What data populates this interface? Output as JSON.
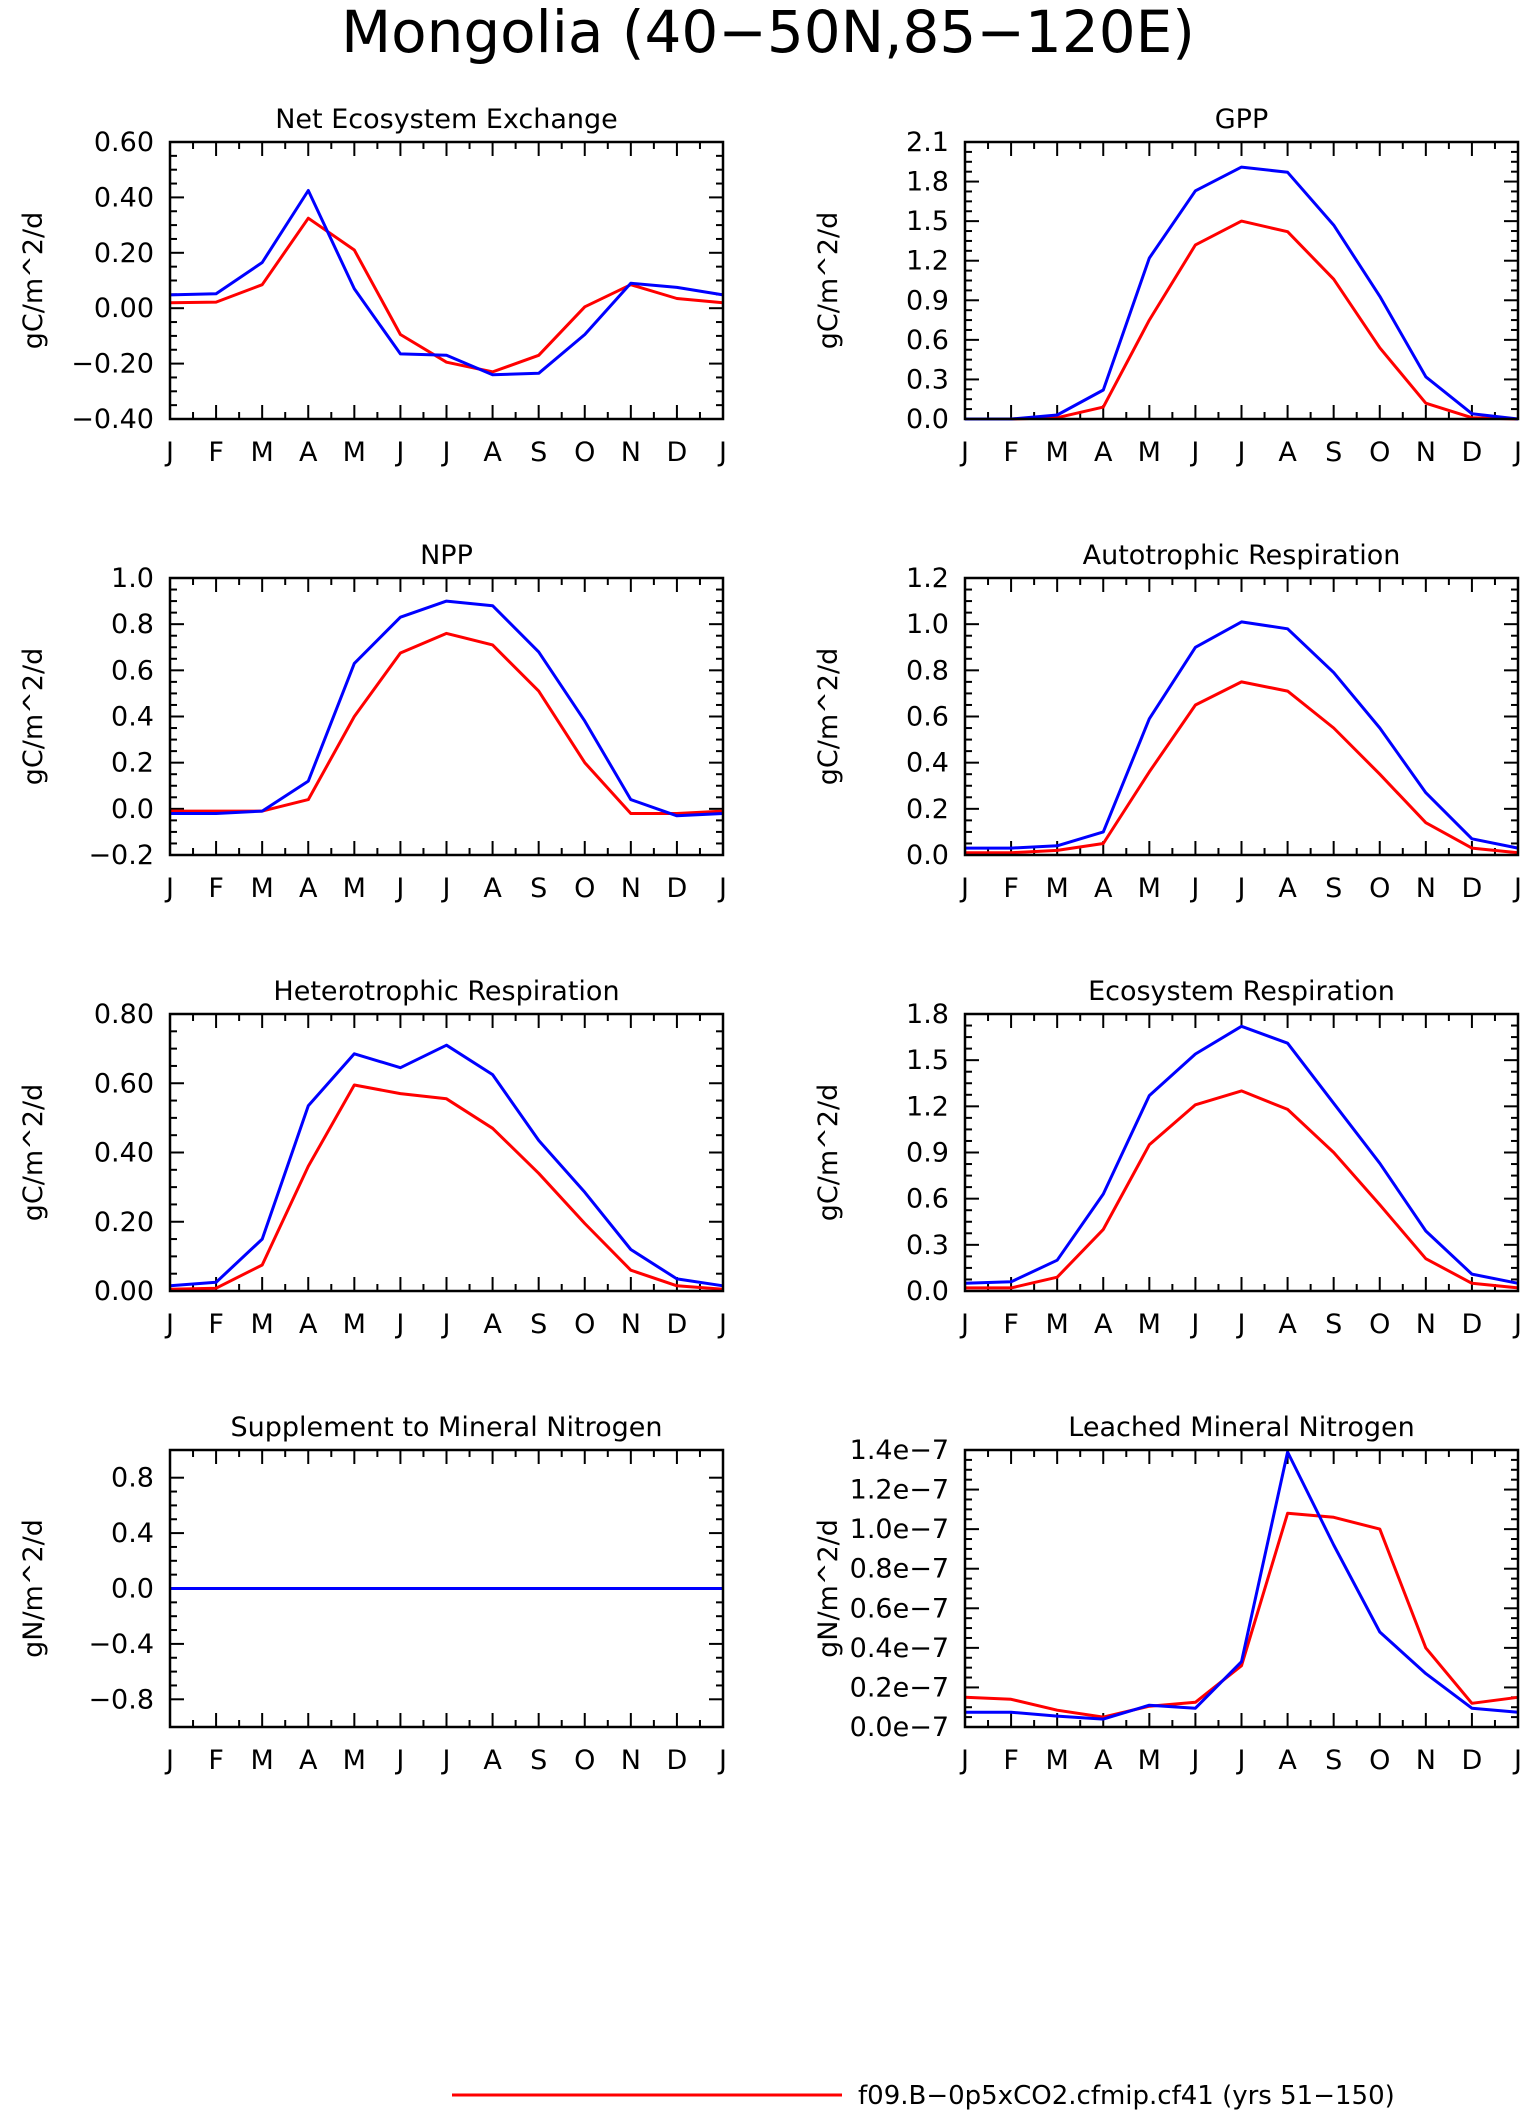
{
  "page_title": "Mongolia (40−50N,85−120E)",
  "legend": [
    {
      "label": "f09.B−0p5xCO2.cfmip.cf41 (yrs 51−150)",
      "color": "#ff0000"
    }
  ],
  "chart_data": [
    {
      "type": "line",
      "title": "Net Ecosystem Exchange",
      "ylabel": "gC/m^2/d",
      "categories": [
        "J",
        "F",
        "M",
        "A",
        "M",
        "J",
        "J",
        "A",
        "S",
        "O",
        "N",
        "D",
        "J"
      ],
      "ylim": [
        -0.4,
        0.6
      ],
      "yticks": [
        -0.4,
        -0.2,
        0.0,
        0.2,
        0.4,
        0.6
      ],
      "yticklabels": [
        "−0.40",
        "−0.20",
        "0.00",
        "0.20",
        "0.40",
        "0.60"
      ],
      "series": [
        {
          "color": "#ff0000",
          "values": [
            0.02,
            0.022,
            0.085,
            0.325,
            0.21,
            -0.095,
            -0.195,
            -0.23,
            -0.17,
            0.005,
            0.085,
            0.035,
            0.02
          ]
        },
        {
          "color": "#0000ff",
          "values": [
            0.048,
            0.052,
            0.165,
            0.425,
            0.07,
            -0.165,
            -0.17,
            -0.24,
            -0.235,
            -0.095,
            0.09,
            0.075,
            0.048
          ]
        }
      ]
    },
    {
      "type": "line",
      "title": "GPP",
      "ylabel": "gC/m^2/d",
      "categories": [
        "J",
        "F",
        "M",
        "A",
        "M",
        "J",
        "J",
        "A",
        "S",
        "O",
        "N",
        "D",
        "J"
      ],
      "ylim": [
        0,
        2.1
      ],
      "yticks": [
        0,
        0.3,
        0.6,
        0.9,
        1.2,
        1.5,
        1.8,
        2.1
      ],
      "yticklabels": [
        "0.0",
        "0.3",
        "0.6",
        "0.9",
        "1.2",
        "1.5",
        "1.8",
        "2.1"
      ],
      "series": [
        {
          "color": "#ff0000",
          "values": [
            0.0,
            0.0,
            0.01,
            0.09,
            0.75,
            1.32,
            1.5,
            1.42,
            1.06,
            0.54,
            0.12,
            0.01,
            0.0
          ]
        },
        {
          "color": "#0000ff",
          "values": [
            0.0,
            0.0,
            0.03,
            0.22,
            1.22,
            1.73,
            1.91,
            1.87,
            1.47,
            0.93,
            0.32,
            0.04,
            0.0
          ]
        }
      ]
    },
    {
      "type": "line",
      "title": "NPP",
      "ylabel": "gC/m^2/d",
      "categories": [
        "J",
        "F",
        "M",
        "A",
        "M",
        "J",
        "J",
        "A",
        "S",
        "O",
        "N",
        "D",
        "J"
      ],
      "ylim": [
        -0.2,
        1.0
      ],
      "yticks": [
        -0.2,
        0.0,
        0.2,
        0.4,
        0.6,
        0.8,
        1.0
      ],
      "yticklabels": [
        "−0.2",
        "0.0",
        "0.2",
        "0.4",
        "0.6",
        "0.8",
        "1.0"
      ],
      "series": [
        {
          "color": "#ff0000",
          "values": [
            -0.01,
            -0.01,
            -0.01,
            0.04,
            0.4,
            0.675,
            0.76,
            0.71,
            0.51,
            0.2,
            -0.02,
            -0.02,
            -0.01
          ]
        },
        {
          "color": "#0000ff",
          "values": [
            -0.02,
            -0.02,
            -0.01,
            0.12,
            0.63,
            0.83,
            0.9,
            0.88,
            0.68,
            0.38,
            0.04,
            -0.03,
            -0.02
          ]
        }
      ]
    },
    {
      "type": "line",
      "title": "Autotrophic Respiration",
      "ylabel": "gC/m^2/d",
      "categories": [
        "J",
        "F",
        "M",
        "A",
        "M",
        "J",
        "J",
        "A",
        "S",
        "O",
        "N",
        "D",
        "J"
      ],
      "ylim": [
        0,
        1.2
      ],
      "yticks": [
        0,
        0.2,
        0.4,
        0.6,
        0.8,
        1.0,
        1.2
      ],
      "yticklabels": [
        "0.0",
        "0.2",
        "0.4",
        "0.6",
        "0.8",
        "1.0",
        "1.2"
      ],
      "series": [
        {
          "color": "#ff0000",
          "values": [
            0.01,
            0.01,
            0.02,
            0.05,
            0.36,
            0.65,
            0.75,
            0.71,
            0.55,
            0.35,
            0.14,
            0.03,
            0.01
          ]
        },
        {
          "color": "#0000ff",
          "values": [
            0.03,
            0.03,
            0.04,
            0.1,
            0.59,
            0.9,
            1.01,
            0.98,
            0.79,
            0.55,
            0.27,
            0.07,
            0.03
          ]
        }
      ]
    },
    {
      "type": "line",
      "title": "Heterotrophic Respiration",
      "ylabel": "gC/m^2/d",
      "categories": [
        "J",
        "F",
        "M",
        "A",
        "M",
        "J",
        "J",
        "A",
        "S",
        "O",
        "N",
        "D",
        "J"
      ],
      "ylim": [
        0,
        0.8
      ],
      "yticks": [
        0,
        0.2,
        0.4,
        0.6,
        0.8
      ],
      "yticklabels": [
        "0.00",
        "0.20",
        "0.40",
        "0.60",
        "0.80"
      ],
      "series": [
        {
          "color": "#ff0000",
          "values": [
            0.005,
            0.008,
            0.075,
            0.36,
            0.595,
            0.57,
            0.555,
            0.47,
            0.34,
            0.195,
            0.06,
            0.015,
            0.005
          ]
        },
        {
          "color": "#0000ff",
          "values": [
            0.015,
            0.025,
            0.15,
            0.535,
            0.685,
            0.645,
            0.71,
            0.625,
            0.435,
            0.285,
            0.12,
            0.035,
            0.015
          ]
        }
      ]
    },
    {
      "type": "line",
      "title": "Ecosystem Respiration",
      "ylabel": "gC/m^2/d",
      "categories": [
        "J",
        "F",
        "M",
        "A",
        "M",
        "J",
        "J",
        "A",
        "S",
        "O",
        "N",
        "D",
        "J"
      ],
      "ylim": [
        0,
        1.8
      ],
      "yticks": [
        0,
        0.3,
        0.6,
        0.9,
        1.2,
        1.5,
        1.8
      ],
      "yticklabels": [
        "0.0",
        "0.3",
        "0.6",
        "0.9",
        "1.2",
        "1.5",
        "1.8"
      ],
      "series": [
        {
          "color": "#ff0000",
          "values": [
            0.02,
            0.02,
            0.09,
            0.4,
            0.95,
            1.21,
            1.3,
            1.18,
            0.9,
            0.56,
            0.21,
            0.05,
            0.02
          ]
        },
        {
          "color": "#0000ff",
          "values": [
            0.05,
            0.06,
            0.2,
            0.63,
            1.27,
            1.54,
            1.72,
            1.61,
            1.22,
            0.83,
            0.39,
            0.11,
            0.05
          ]
        }
      ]
    },
    {
      "type": "line",
      "title": "Supplement to Mineral Nitrogen",
      "ylabel": "gN/m^2/d",
      "categories": [
        "J",
        "F",
        "M",
        "A",
        "M",
        "J",
        "J",
        "A",
        "S",
        "O",
        "N",
        "D",
        "J"
      ],
      "ylim": [
        -1.0,
        1.0
      ],
      "yticks": [
        -0.8,
        -0.4,
        0.0,
        0.4,
        0.8
      ],
      "yticklabels": [
        "−0.8",
        "−0.4",
        "0.0",
        "0.4",
        "0.8"
      ],
      "series": [
        {
          "color": "#ff0000",
          "values": [
            0,
            0,
            0,
            0,
            0,
            0,
            0,
            0,
            0,
            0,
            0,
            0,
            0
          ]
        },
        {
          "color": "#0000ff",
          "values": [
            0,
            0,
            0,
            0,
            0,
            0,
            0,
            0,
            0,
            0,
            0,
            0,
            0
          ]
        }
      ]
    },
    {
      "type": "line",
      "title": "Leached Mineral Nitrogen",
      "ylabel": "gN/m^2/d",
      "categories": [
        "J",
        "F",
        "M",
        "A",
        "M",
        "J",
        "J",
        "A",
        "S",
        "O",
        "N",
        "D",
        "J"
      ],
      "ylim": [
        0,
        1.4e-07
      ],
      "yticks": [
        0,
        2e-08,
        4e-08,
        6e-08,
        8e-08,
        1e-07,
        1.2e-07,
        1.4e-07
      ],
      "yticklabels": [
        "0.0e−7",
        "0.2e−7",
        "0.4e−7",
        "0.6e−7",
        "0.8e−7",
        "1.0e−7",
        "1.2e−7",
        "1.4e−7"
      ],
      "series": [
        {
          "color": "#ff0000",
          "values": [
            1.5e-08,
            1.4e-08,
            8.5e-09,
            5e-09,
            1.05e-08,
            1.25e-08,
            3.1e-08,
            1.08e-07,
            1.06e-07,
            1e-07,
            4e-08,
            1.2e-08,
            1.5e-08
          ]
        },
        {
          "color": "#0000ff",
          "values": [
            7.5e-09,
            7.5e-09,
            5.5e-09,
            4e-09,
            1.1e-08,
            9.5e-09,
            3.3e-08,
            1.39e-07,
            9.2e-08,
            4.8e-08,
            2.7e-08,
            9.5e-09,
            7.5e-09
          ]
        }
      ]
    }
  ]
}
